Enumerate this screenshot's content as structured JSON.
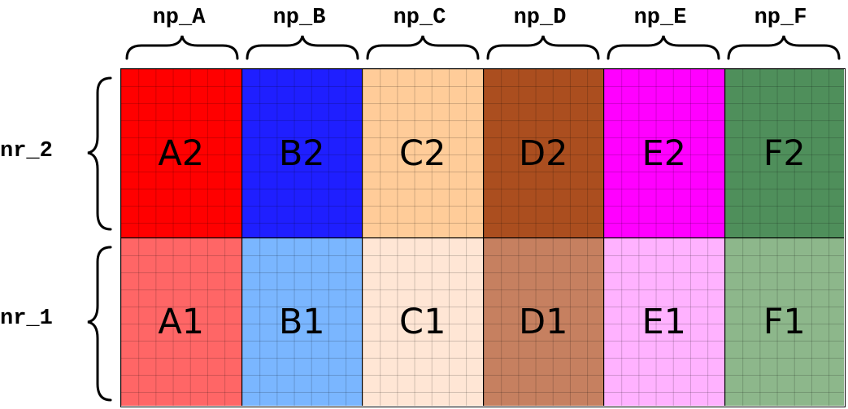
{
  "columns": [
    {
      "label": "np_A"
    },
    {
      "label": "np_B"
    },
    {
      "label": "np_C"
    },
    {
      "label": "np_D"
    },
    {
      "label": "np_E"
    },
    {
      "label": "np_F"
    }
  ],
  "rows": [
    {
      "label": "nr_2"
    },
    {
      "label": "nr_1"
    }
  ],
  "cells": {
    "nr_2": [
      {
        "label": "A2",
        "color": "#ff0000"
      },
      {
        "label": "B2",
        "color": "#1f1fff"
      },
      {
        "label": "C2",
        "color": "#ffcc99"
      },
      {
        "label": "D2",
        "color": "#ab4e1f"
      },
      {
        "label": "E2",
        "color": "#ff00ff"
      },
      {
        "label": "F2",
        "color": "#4f8f5b"
      }
    ],
    "nr_1": [
      {
        "label": "A1",
        "color": "#ff6666"
      },
      {
        "label": "B1",
        "color": "#7ab6ff"
      },
      {
        "label": "C1",
        "color": "#ffe6d5"
      },
      {
        "label": "D1",
        "color": "#c68060"
      },
      {
        "label": "E1",
        "color": "#ffb2ff"
      },
      {
        "label": "F1",
        "color": "#8db78b"
      }
    ]
  }
}
